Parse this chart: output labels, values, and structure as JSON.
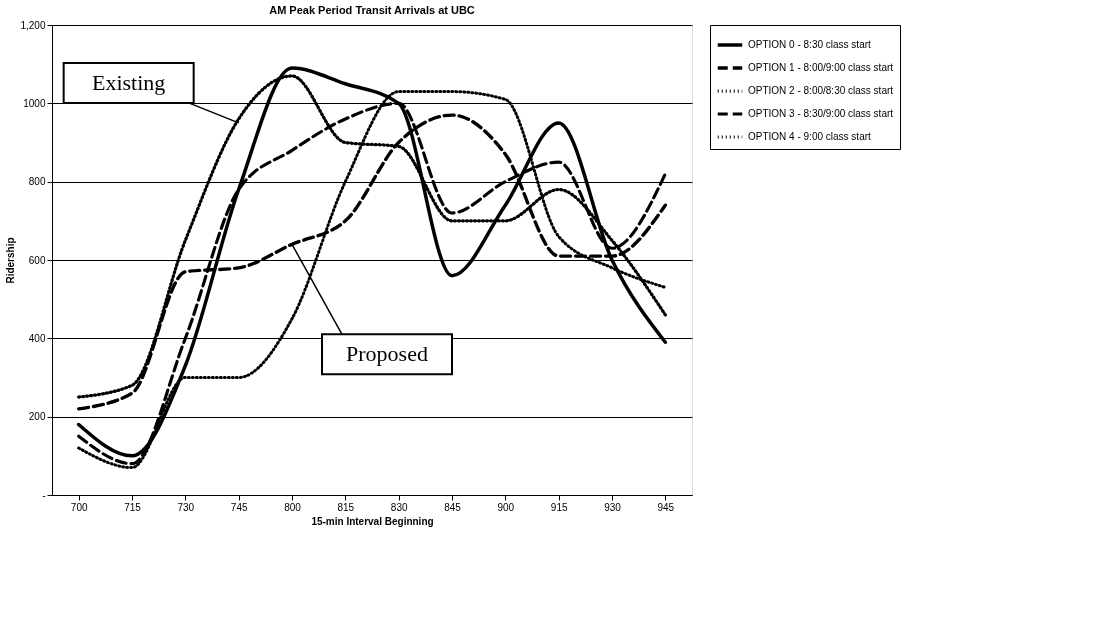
{
  "chart_data": {
    "type": "line",
    "title": "AM Peak Period Transit Arrivals at UBC",
    "xlabel": "15-min Interval Beginning",
    "ylabel": "Ridership",
    "categories": [
      "700",
      "715",
      "730",
      "745",
      "800",
      "815",
      "830",
      "845",
      "900",
      "915",
      "930",
      "945"
    ],
    "series": [
      {
        "name": "OPTION 0 - 8:30 class start",
        "color": "#000000",
        "line_style": "solid",
        "values": [
          180,
          100,
          330,
          780,
          1090,
          1050,
          1000,
          560,
          740,
          950,
          600,
          390
        ]
      },
      {
        "name": "OPTION 1 - 8:00/9:00 class start",
        "color": "#000000",
        "line_style": "dashed",
        "values": [
          220,
          260,
          570,
          580,
          640,
          700,
          900,
          970,
          870,
          610,
          610,
          740
        ]
      },
      {
        "name": "OPTION 2 - 8:00/8:30 class start",
        "color": "#000000",
        "line_style": "dotted",
        "values": [
          250,
          280,
          650,
          960,
          1070,
          900,
          890,
          700,
          700,
          780,
          650,
          460
        ]
      },
      {
        "name": "OPTION 3 - 8:30/9:00 class start",
        "color": "#000000",
        "line_style": "dashed",
        "values": [
          150,
          80,
          400,
          780,
          880,
          960,
          1000,
          720,
          800,
          850,
          630,
          820
        ]
      },
      {
        "name": "OPTION 4 - 9:00 class start",
        "color": "#000000",
        "line_style": "dotted",
        "values": [
          120,
          70,
          300,
          300,
          450,
          800,
          1030,
          1030,
          1010,
          660,
          580,
          530
        ]
      }
    ],
    "ylim": [
      0,
      1200
    ],
    "yticks": [
      {
        "value": 0,
        "label": "-"
      },
      200,
      400,
      600,
      800,
      1000,
      {
        "value": 1200,
        "label": "1,200"
      }
    ],
    "grid": "y",
    "legend": "right",
    "annotations": [
      {
        "text": "Existing",
        "x": "745",
        "y": 950
      },
      {
        "text": "Proposed",
        "x": "800",
        "y": 640
      }
    ]
  }
}
